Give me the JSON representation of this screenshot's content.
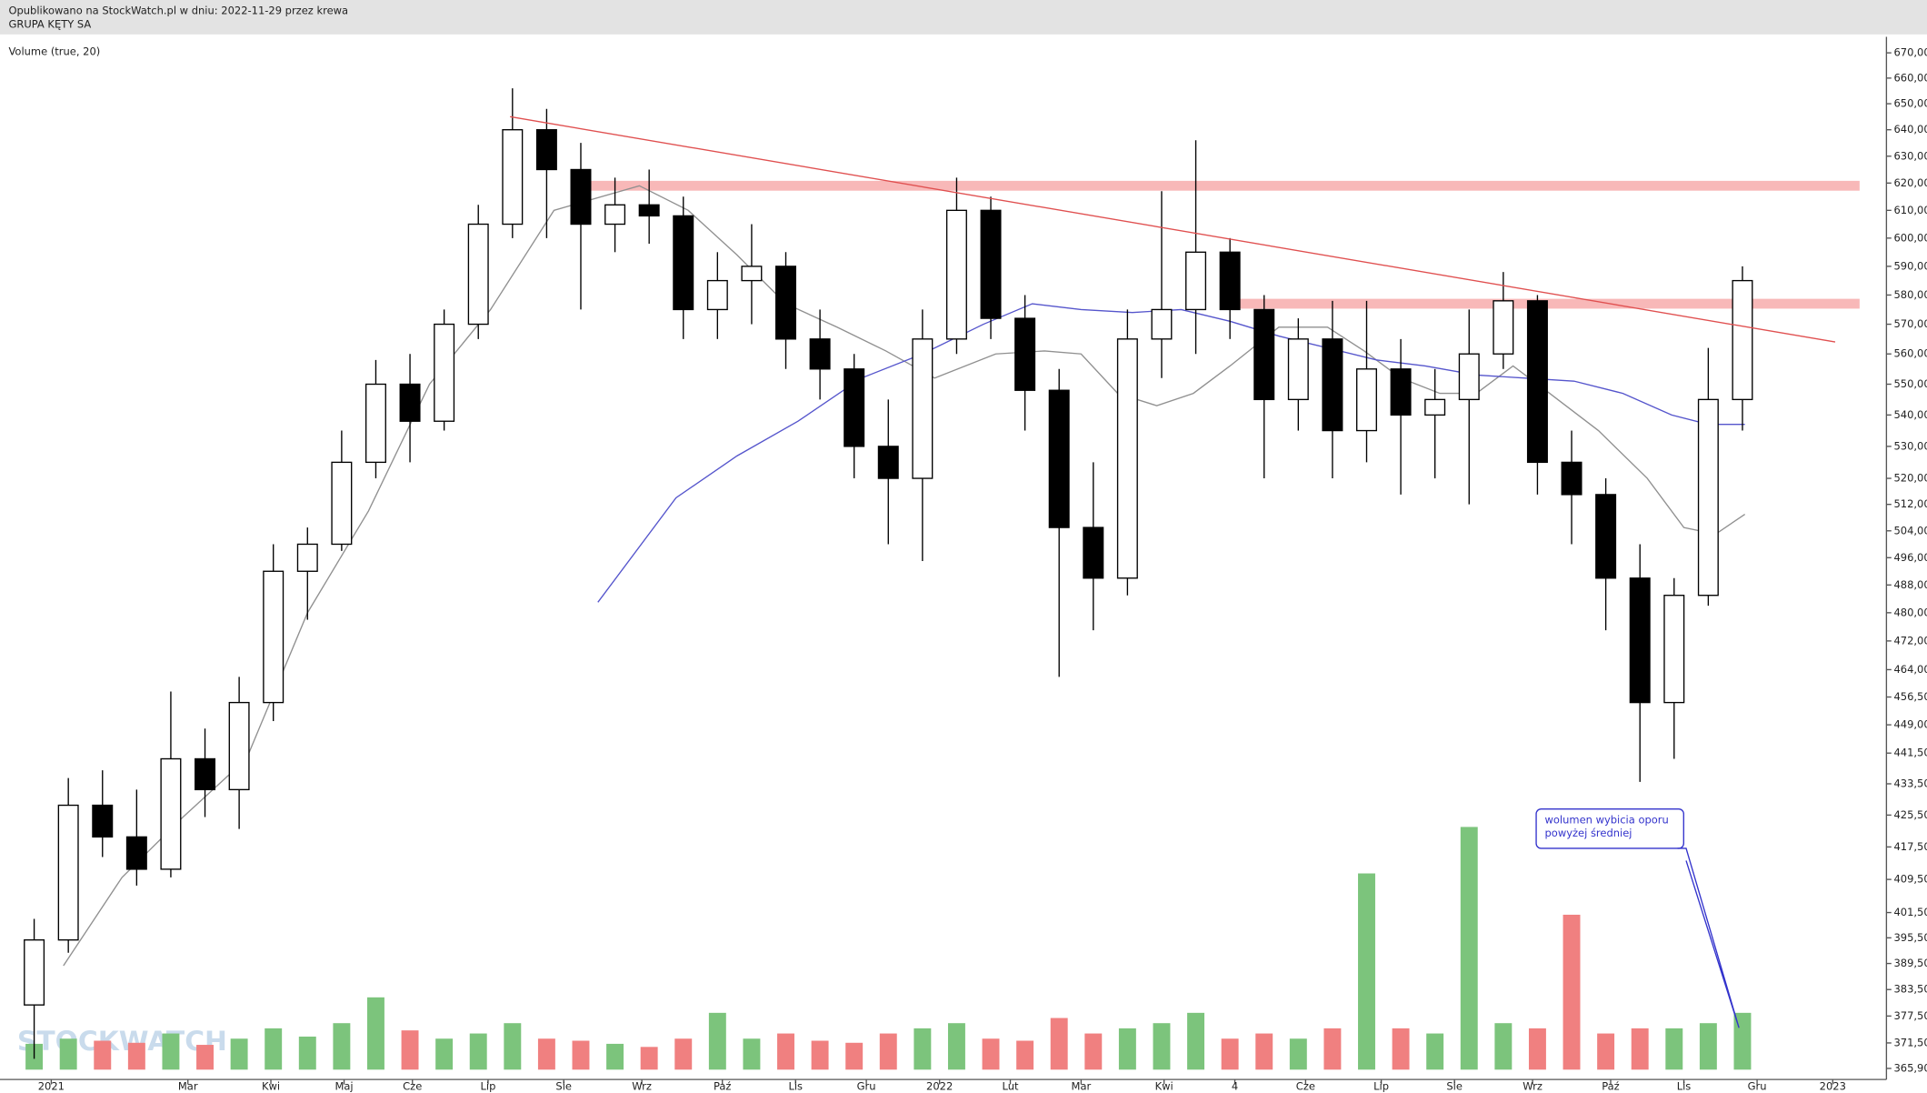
{
  "header": {
    "line1": "Opublikowano na StockWatch.pl w dniu: 2022-11-29 przez krewa",
    "line2": "GRUPA KĘTY SA"
  },
  "chart_data": {
    "type": "candlestick",
    "indicator_label": "Volume (true, 20)",
    "watermark": "STOCKWATCH",
    "log_scale": true,
    "xlim": [
      -21,
      751
    ],
    "ylim": [
      363.5,
      676.4
    ],
    "vlim": [
      0,
      250
    ],
    "xticks": [
      {
        "value": 0,
        "label": "2021"
      },
      {
        "value": 56,
        "label": "Mar"
      },
      {
        "value": 90,
        "label": "Kwi"
      },
      {
        "value": 120,
        "label": "Maj"
      },
      {
        "value": 148,
        "label": "Cze"
      },
      {
        "value": 179,
        "label": "Lip"
      },
      {
        "value": 210,
        "label": "Sie"
      },
      {
        "value": 242,
        "label": "Wrz"
      },
      {
        "value": 275,
        "label": "Paź"
      },
      {
        "value": 305,
        "label": "Lis"
      },
      {
        "value": 334,
        "label": "Gru"
      },
      {
        "value": 364,
        "label": "2022"
      },
      {
        "value": 393,
        "label": "Lut"
      },
      {
        "value": 422,
        "label": "Mar"
      },
      {
        "value": 456,
        "label": "Kwi"
      },
      {
        "value": 485,
        "label": "4"
      },
      {
        "value": 514,
        "label": "Cze"
      },
      {
        "value": 545,
        "label": "Lip"
      },
      {
        "value": 575,
        "label": "Sie"
      },
      {
        "value": 607,
        "label": "Wrz"
      },
      {
        "value": 639,
        "label": "Paź"
      },
      {
        "value": 669,
        "label": "Lis"
      },
      {
        "value": 699,
        "label": "Gru"
      },
      {
        "value": 730,
        "label": "2023"
      }
    ],
    "yticks": [
      {
        "value": 670,
        "label": "670,00"
      },
      {
        "value": 660,
        "label": "660,00"
      },
      {
        "value": 650,
        "label": "650,00"
      },
      {
        "value": 640,
        "label": "640,00"
      },
      {
        "value": 630,
        "label": "630,00"
      },
      {
        "value": 620,
        "label": "620,00"
      },
      {
        "value": 610,
        "label": "610,00"
      },
      {
        "value": 600,
        "label": "600,00"
      },
      {
        "value": 590,
        "label": "590,00"
      },
      {
        "value": 580,
        "label": "580,00"
      },
      {
        "value": 570,
        "label": "570,00"
      },
      {
        "value": 560,
        "label": "560,00"
      },
      {
        "value": 550,
        "label": "550,00"
      },
      {
        "value": 540,
        "label": "540,00"
      },
      {
        "value": 530,
        "label": "530,00"
      },
      {
        "value": 520,
        "label": "520,00"
      },
      {
        "value": 512,
        "label": "512,00"
      },
      {
        "value": 504,
        "label": "504,00"
      },
      {
        "value": 496,
        "label": "496,00"
      },
      {
        "value": 488,
        "label": "488,00"
      },
      {
        "value": 480,
        "label": "480,00"
      },
      {
        "value": 472,
        "label": "472,00"
      },
      {
        "value": 464,
        "label": "464,00"
      },
      {
        "value": 456.5,
        "label": "456,50"
      },
      {
        "value": 449,
        "label": "449,00"
      },
      {
        "value": 441.5,
        "label": "441,50"
      },
      {
        "value": 433.5,
        "label": "433,50"
      },
      {
        "value": 425.5,
        "label": "425,50"
      },
      {
        "value": 417.5,
        "label": "417,50"
      },
      {
        "value": 409.5,
        "label": "409,50"
      },
      {
        "value": 401.5,
        "label": "401,50"
      },
      {
        "value": 395.5,
        "label": "395,50"
      },
      {
        "value": 389.5,
        "label": "389,50"
      },
      {
        "value": 383.5,
        "label": "383,50"
      },
      {
        "value": 377.5,
        "label": "377,50"
      },
      {
        "value": 371.5,
        "label": "371,50"
      },
      {
        "value": 365.9,
        "label": "365,90"
      }
    ],
    "x": [
      -7,
      7,
      21,
      35,
      49,
      63,
      77,
      91,
      105,
      119,
      133,
      147,
      161,
      175,
      189,
      203,
      217,
      231,
      245,
      259,
      273,
      287,
      301,
      315,
      329,
      343,
      357,
      371,
      385,
      399,
      413,
      427,
      441,
      455,
      469,
      483,
      497,
      511,
      525,
      539,
      553,
      567,
      581,
      595,
      609,
      623,
      637,
      651,
      665,
      679,
      693
    ],
    "open": [
      380,
      395,
      428,
      420,
      412,
      440,
      432,
      455,
      492,
      500,
      525,
      550,
      538,
      570,
      605,
      640,
      625,
      605,
      612,
      608,
      575,
      585,
      590,
      565,
      555,
      530,
      520,
      565,
      610,
      572,
      548,
      505,
      490,
      565,
      575,
      595,
      575,
      545,
      565,
      535,
      555,
      540,
      545,
      560,
      578,
      525,
      515,
      490,
      455,
      485,
      545
    ],
    "high": [
      400,
      435,
      437,
      432,
      458,
      448,
      462,
      500,
      505,
      535,
      558,
      560,
      575,
      612,
      656,
      648,
      635,
      622,
      625,
      615,
      595,
      605,
      595,
      575,
      560,
      545,
      575,
      622,
      615,
      580,
      555,
      525,
      575,
      617,
      636,
      600,
      580,
      572,
      578,
      578,
      565,
      555,
      575,
      588,
      580,
      535,
      520,
      500,
      490,
      562,
      590
    ],
    "low": [
      368,
      392,
      415,
      408,
      410,
      425,
      422,
      450,
      478,
      498,
      520,
      525,
      535,
      565,
      600,
      600,
      575,
      595,
      598,
      565,
      565,
      570,
      555,
      545,
      520,
      500,
      495,
      560,
      565,
      535,
      462,
      475,
      485,
      552,
      560,
      565,
      520,
      535,
      520,
      525,
      515,
      520,
      512,
      555,
      515,
      500,
      475,
      434,
      440,
      482,
      535
    ],
    "close": [
      395,
      428,
      420,
      412,
      440,
      432,
      455,
      492,
      500,
      525,
      550,
      538,
      570,
      605,
      640,
      625,
      605,
      612,
      608,
      575,
      585,
      590,
      565,
      555,
      530,
      520,
      565,
      610,
      572,
      548,
      505,
      490,
      565,
      575,
      595,
      575,
      545,
      565,
      535,
      555,
      540,
      545,
      560,
      578,
      525,
      515,
      490,
      455,
      485,
      545,
      585
    ],
    "volume": [
      25,
      30,
      28,
      26,
      35,
      24,
      30,
      40,
      32,
      45,
      70,
      38,
      30,
      35,
      45,
      30,
      28,
      25,
      22,
      30,
      55,
      30,
      35,
      28,
      26,
      35,
      40,
      45,
      30,
      28,
      50,
      35,
      40,
      45,
      55,
      30,
      35,
      30,
      40,
      190,
      40,
      35,
      235,
      45,
      40,
      150,
      35,
      40,
      40,
      45,
      55
    ],
    "up_color": "#ffffff",
    "down_color": "#000000",
    "volume_up_color": "#7cc47c",
    "volume_down_color": "#f08080",
    "series": [
      {
        "color": "#909090",
        "x": [
          5,
          29,
          54,
          80,
          105,
          130,
          155,
          180,
          206,
          241,
          261,
          281,
          301,
          322,
          342,
          362,
          387,
          407,
          422,
          437,
          453,
          468,
          483,
          503,
          523,
          538,
          553,
          569,
          584,
          599,
          614,
          634,
          654,
          669,
          682,
          694
        ],
        "values": [
          389,
          410,
          425,
          440,
          480,
          510,
          550,
          575,
          610,
          619,
          610,
          594,
          577,
          569,
          561,
          552,
          560,
          561,
          560,
          547,
          543,
          547,
          556,
          569,
          569,
          561,
          552,
          547,
          547,
          556,
          547,
          535,
          520,
          505,
          503,
          509
        ]
      },
      {
        "color": "#5555cc",
        "x": [
          224,
          256,
          281,
          306,
          332,
          357,
          382,
          402,
          422,
          443,
          463,
          483,
          503,
          523,
          543,
          563,
          584,
          604,
          624,
          644,
          664,
          679,
          694
        ],
        "values": [
          483,
          514,
          527,
          538,
          552,
          560,
          570,
          577,
          575,
          574,
          575,
          571,
          566,
          562,
          558,
          556,
          553,
          552,
          551,
          547,
          540,
          537,
          537
        ]
      }
    ],
    "trendline": {
      "color": "#e05050",
      "x": [
        188,
        731
      ],
      "y": [
        645,
        564
      ]
    },
    "zones": [
      {
        "color": "#f8b8b8",
        "x": [
          216,
          741
        ],
        "y": 619
      },
      {
        "color": "#f8b8b8",
        "x": [
          485,
          741
        ],
        "y": 577
      }
    ],
    "annotation": {
      "line1": "wolumen wybicia oporu",
      "line2": "powyżej średniej",
      "color": "#3333cc"
    }
  }
}
